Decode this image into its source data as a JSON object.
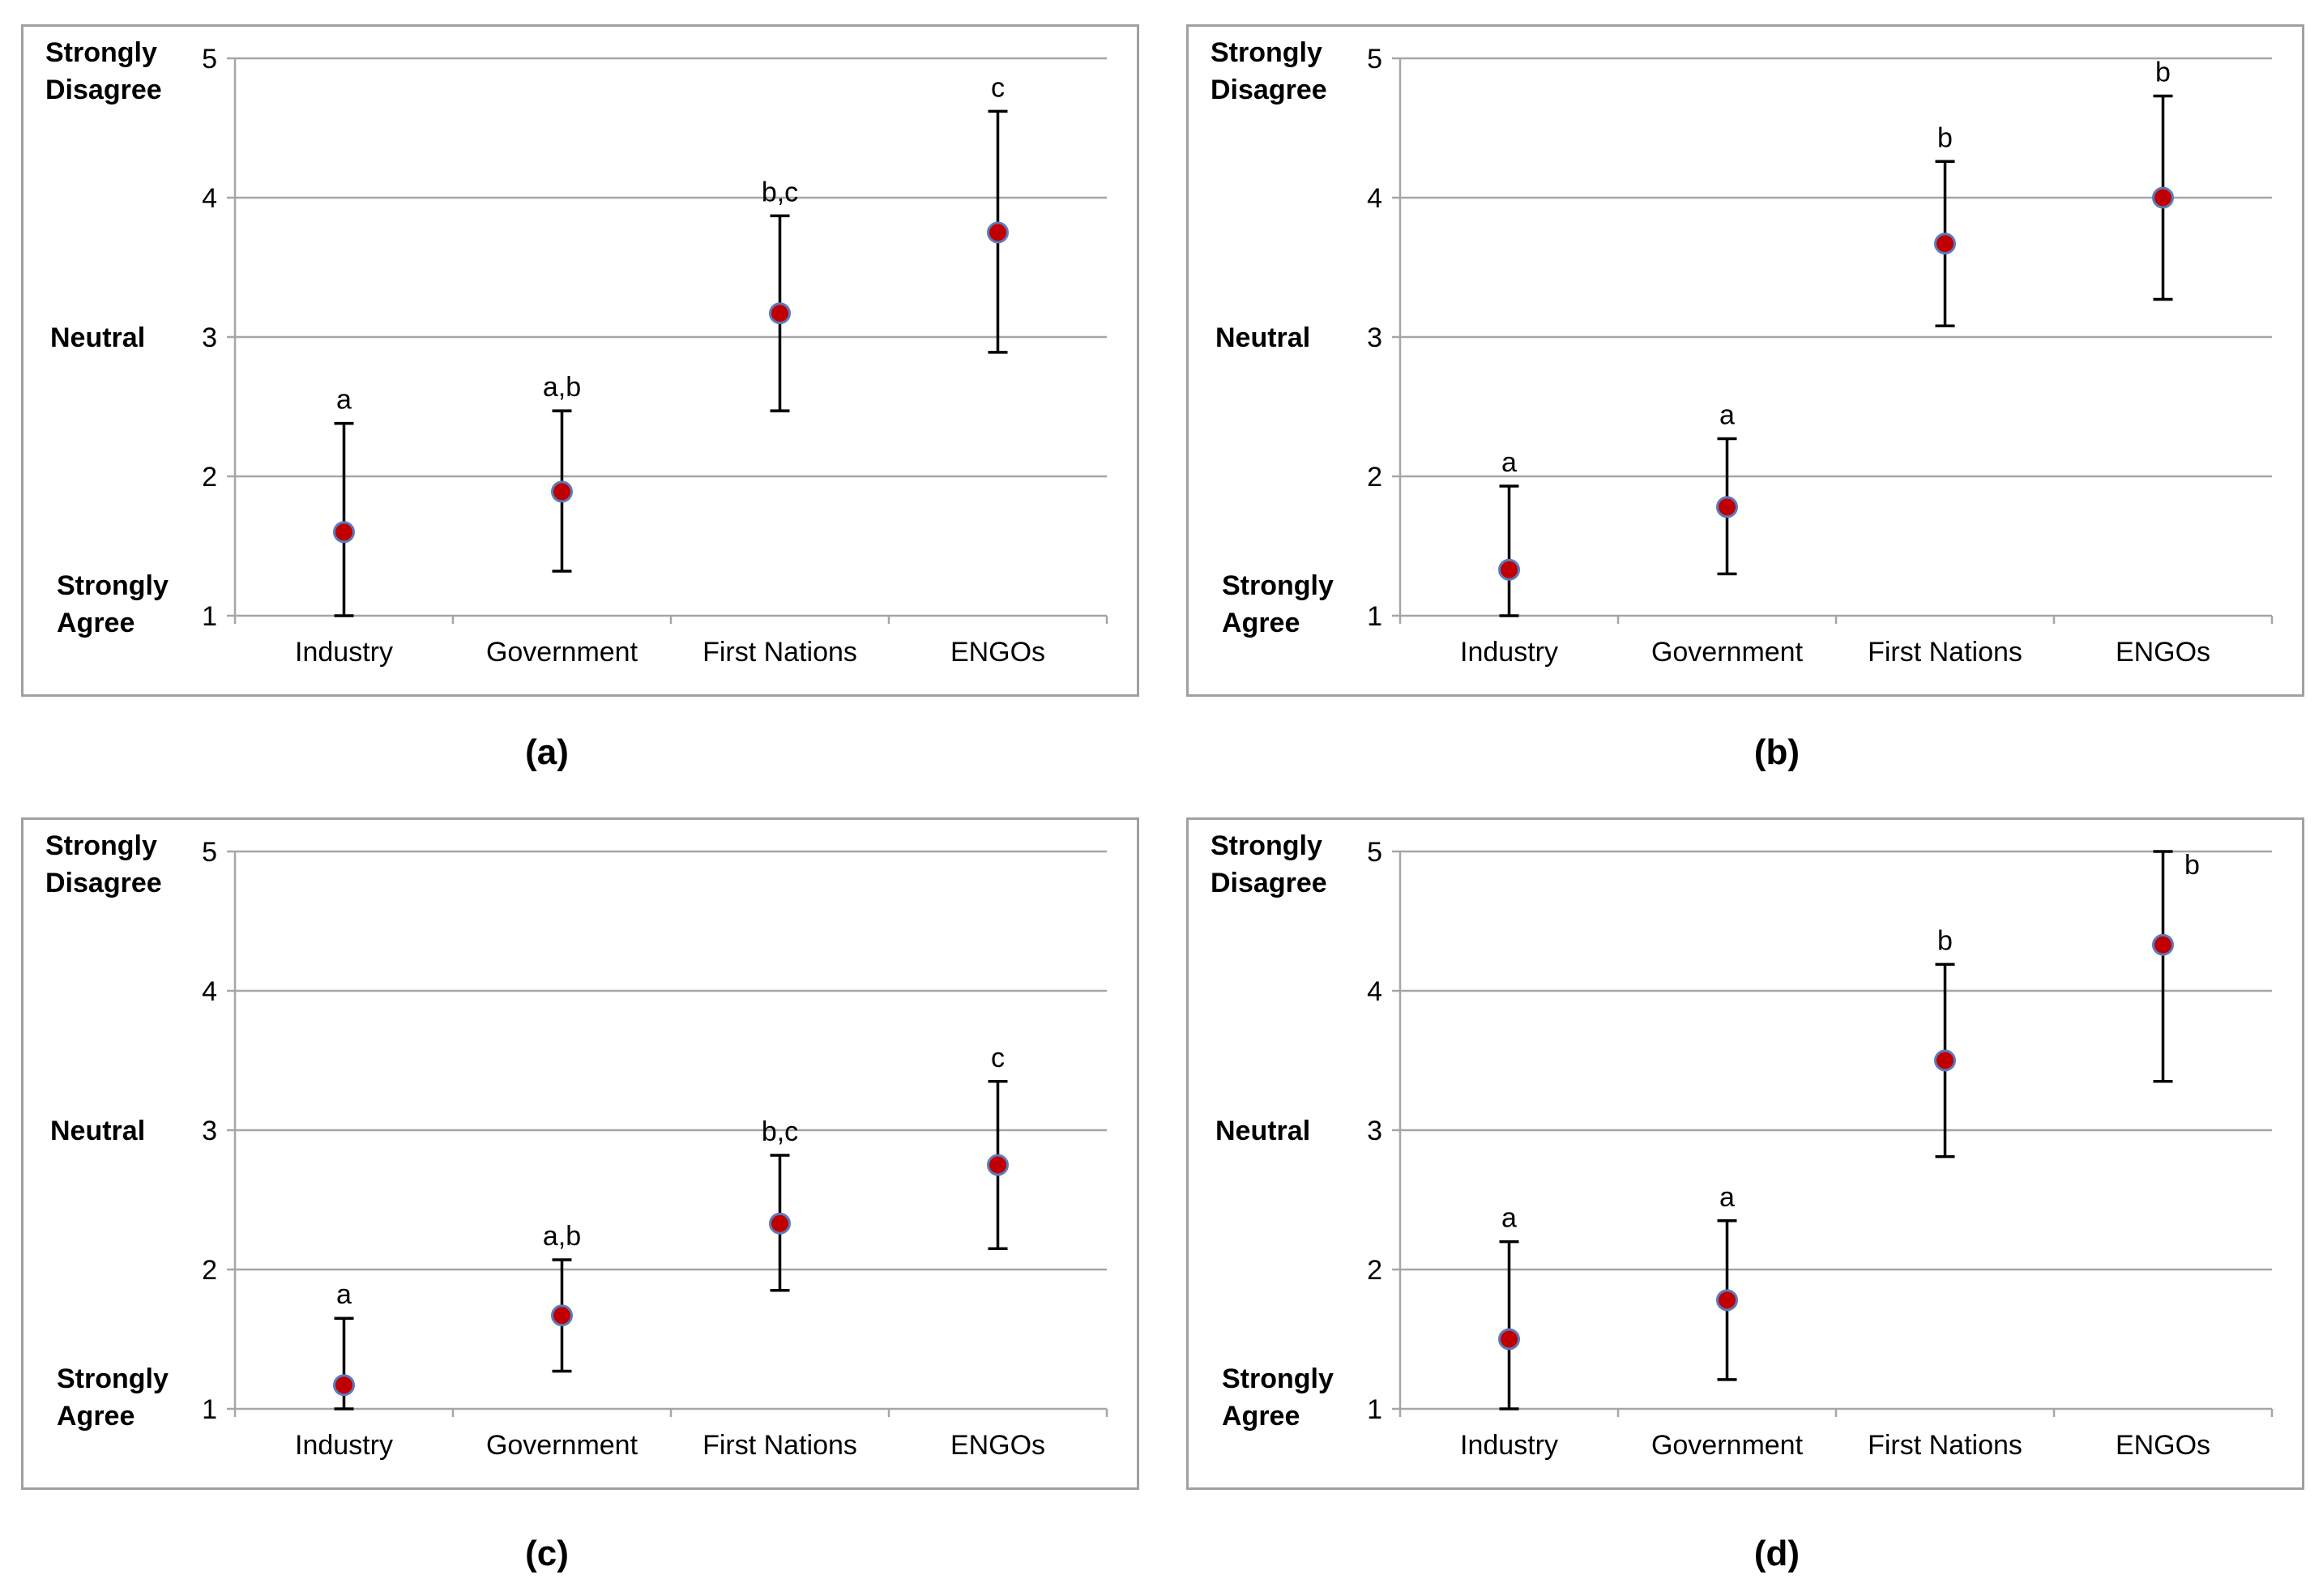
{
  "point_color": "#c00000",
  "point_stroke": "#5b7bbf",
  "chart_data": [
    {
      "type": "scatter",
      "panel_label": "(a)",
      "categories": [
        "Industry",
        "Government",
        "First Nations",
        "ENGOs"
      ],
      "values": [
        1.6,
        1.89,
        3.17,
        3.75
      ],
      "error_low": [
        1.0,
        1.32,
        2.47,
        2.89
      ],
      "error_high": [
        2.38,
        2.47,
        3.87,
        4.62
      ],
      "letters": [
        "a",
        "a,b",
        "b,c",
        "c"
      ],
      "ylim": [
        1,
        5
      ],
      "yticks": [
        "1",
        "2",
        "3",
        "4",
        "5"
      ],
      "ylabels": {
        "top": [
          "Strongly",
          "Disagree"
        ],
        "mid": "Neutral",
        "bottom": [
          "Strongly",
          "Agree"
        ]
      }
    },
    {
      "type": "scatter",
      "panel_label": "(b)",
      "categories": [
        "Industry",
        "Government",
        "First Nations",
        "ENGOs"
      ],
      "values": [
        1.33,
        1.78,
        3.67,
        4.0
      ],
      "error_low": [
        1.0,
        1.3,
        3.08,
        3.27
      ],
      "error_high": [
        1.93,
        2.27,
        4.26,
        4.73
      ],
      "letters": [
        "a",
        "a",
        "b",
        "b"
      ],
      "ylim": [
        1,
        5
      ],
      "yticks": [
        "1",
        "2",
        "3",
        "4",
        "5"
      ],
      "ylabels": {
        "top": [
          "Strongly",
          "Disagree"
        ],
        "mid": "Neutral",
        "bottom": [
          "Strongly",
          "Agree"
        ]
      }
    },
    {
      "type": "scatter",
      "panel_label": "(c)",
      "categories": [
        "Industry",
        "Government",
        "First Nations",
        "ENGOs"
      ],
      "values": [
        1.17,
        1.67,
        2.33,
        2.75
      ],
      "error_low": [
        1.0,
        1.27,
        1.85,
        2.15
      ],
      "error_high": [
        1.65,
        2.07,
        2.82,
        3.35
      ],
      "letters": [
        "a",
        "a,b",
        "b,c",
        "c"
      ],
      "ylim": [
        1,
        5
      ],
      "yticks": [
        "1",
        "2",
        "3",
        "4",
        "5"
      ],
      "ylabels": {
        "top": [
          "Strongly",
          "Disagree"
        ],
        "mid": "Neutral",
        "bottom": [
          "Strongly",
          "Agree"
        ]
      }
    },
    {
      "type": "scatter",
      "panel_label": "(d)",
      "categories": [
        "Industry",
        "Government",
        "First Nations",
        "ENGOs"
      ],
      "values": [
        1.5,
        1.78,
        3.5,
        4.33
      ],
      "error_low": [
        1.0,
        1.21,
        2.81,
        3.35
      ],
      "error_high": [
        2.2,
        2.35,
        4.19,
        5.0
      ],
      "letters": [
        "a",
        "a",
        "b",
        "b"
      ],
      "ylim": [
        1,
        5
      ],
      "yticks": [
        "1",
        "2",
        "3",
        "4",
        "5"
      ],
      "ylabels": {
        "top": [
          "Strongly",
          "Disagree"
        ],
        "mid": "Neutral",
        "bottom": [
          "Strongly",
          "Agree"
        ]
      }
    }
  ]
}
